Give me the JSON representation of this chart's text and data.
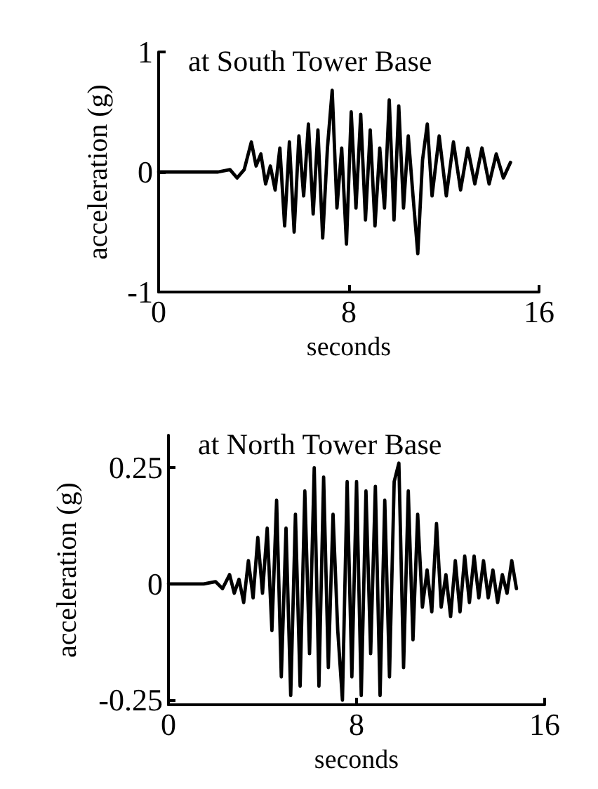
{
  "chart_data": [
    {
      "type": "line",
      "title": "at South Tower Base",
      "xlabel": "seconds",
      "ylabel": "acceleration (g)",
      "xlim": [
        0,
        16
      ],
      "xticks": [
        0,
        8,
        16
      ],
      "ylim": [
        -1,
        1
      ],
      "yticks": [
        -1,
        0,
        1
      ],
      "series": [
        {
          "color": "#000000",
          "x": [
            0,
            2.5,
            3.0,
            3.3,
            3.6,
            3.9,
            4.1,
            4.3,
            4.5,
            4.7,
            4.9,
            5.1,
            5.3,
            5.5,
            5.7,
            5.9,
            6.1,
            6.3,
            6.5,
            6.7,
            6.9,
            7.1,
            7.3,
            7.5,
            7.7,
            7.9,
            8.1,
            8.3,
            8.5,
            8.7,
            8.9,
            9.1,
            9.3,
            9.5,
            9.7,
            9.9,
            10.1,
            10.3,
            10.5,
            10.7,
            10.9,
            11.1,
            11.3,
            11.5,
            11.8,
            12.1,
            12.4,
            12.7,
            13.0,
            13.3,
            13.6,
            13.9,
            14.2,
            14.5,
            14.8
          ],
          "values": [
            0,
            0,
            0.02,
            -0.05,
            0.02,
            0.25,
            0.05,
            0.15,
            -0.1,
            0.05,
            -0.15,
            0.2,
            -0.45,
            0.25,
            -0.5,
            0.3,
            -0.2,
            0.4,
            -0.35,
            0.35,
            -0.55,
            0.2,
            0.68,
            -0.3,
            0.2,
            -0.6,
            0.5,
            -0.3,
            0.48,
            -0.4,
            0.35,
            -0.45,
            0.2,
            -0.3,
            0.6,
            -0.4,
            0.55,
            -0.3,
            0.3,
            -0.2,
            -0.68,
            0.1,
            0.4,
            -0.2,
            0.3,
            -0.2,
            0.25,
            -0.15,
            0.2,
            -0.1,
            0.2,
            -0.1,
            0.15,
            -0.05,
            0.08
          ]
        }
      ]
    },
    {
      "type": "line",
      "title": "at North Tower Base",
      "xlabel": "seconds",
      "ylabel": "acceleration (g)",
      "xlim": [
        0,
        16
      ],
      "xticks": [
        0,
        8,
        16
      ],
      "ylim": [
        -0.26,
        0.32
      ],
      "yticks": [
        -0.25,
        0,
        0.25
      ],
      "series": [
        {
          "color": "#000000",
          "x": [
            0,
            1.5,
            2.0,
            2.3,
            2.6,
            2.8,
            3.0,
            3.2,
            3.4,
            3.6,
            3.8,
            4.0,
            4.2,
            4.4,
            4.6,
            4.8,
            5.0,
            5.2,
            5.4,
            5.6,
            5.8,
            6.0,
            6.2,
            6.4,
            6.6,
            6.8,
            7.0,
            7.2,
            7.4,
            7.6,
            7.8,
            8.0,
            8.2,
            8.4,
            8.6,
            8.8,
            9.0,
            9.2,
            9.4,
            9.6,
            9.8,
            10.0,
            10.2,
            10.4,
            10.6,
            10.8,
            11.0,
            11.2,
            11.4,
            11.6,
            11.8,
            12.0,
            12.2,
            12.4,
            12.6,
            12.8,
            13.0,
            13.2,
            13.4,
            13.6,
            13.8,
            14.0,
            14.2,
            14.4,
            14.6,
            14.8
          ],
          "values": [
            0,
            0,
            0.005,
            -0.01,
            0.02,
            -0.02,
            0.01,
            -0.04,
            0.05,
            -0.03,
            0.1,
            -0.02,
            0.12,
            -0.1,
            0.18,
            -0.2,
            0.12,
            -0.24,
            0.15,
            -0.22,
            0.2,
            -0.15,
            0.25,
            -0.22,
            0.23,
            -0.18,
            0.15,
            -0.1,
            -0.25,
            0.22,
            -0.2,
            0.22,
            -0.24,
            0.2,
            -0.15,
            0.21,
            -0.24,
            0.18,
            -0.2,
            0.22,
            0.26,
            -0.18,
            0.2,
            -0.12,
            0.15,
            -0.05,
            0.03,
            -0.06,
            0.13,
            -0.05,
            0.02,
            -0.07,
            0.05,
            -0.06,
            0.06,
            -0.04,
            0.06,
            -0.03,
            0.05,
            -0.03,
            0.03,
            -0.04,
            0.02,
            -0.02,
            0.05,
            -0.01
          ]
        }
      ]
    }
  ]
}
